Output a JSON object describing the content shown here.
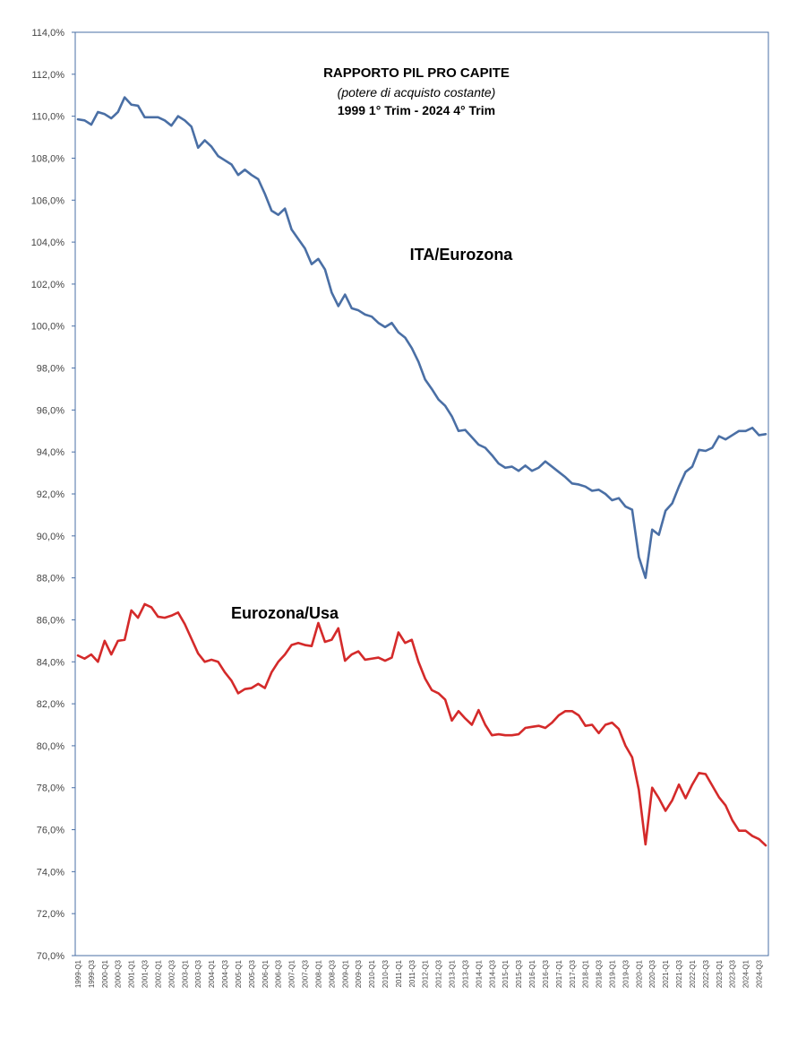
{
  "chart_data": {
    "type": "line",
    "title": "RAPPORTO PIL PRO CAPITE",
    "subtitle": "(potere di acquisto costante)",
    "period": "1999 1° Trim - 2024 4° Trim",
    "xlabel": "",
    "ylabel": "",
    "ylim": [
      70,
      114
    ],
    "ytick_step": 2,
    "ytick_labels": [
      "70,0%",
      "72,0%",
      "74,0%",
      "76,0%",
      "78,0%",
      "80,0%",
      "82,0%",
      "84,0%",
      "86,0%",
      "88,0%",
      "90,0%",
      "92,0%",
      "94,0%",
      "96,0%",
      "98,0%",
      "100,0%",
      "102,0%",
      "104,0%",
      "106,0%",
      "108,0%",
      "110,0%",
      "112,0%",
      "114,0%"
    ],
    "x_tick_labels": [
      "1999-Q1",
      "1999-Q3",
      "2000-Q1",
      "2000-Q3",
      "2001-Q1",
      "2001-Q3",
      "2002-Q1",
      "2002-Q3",
      "2003-Q1",
      "2003-Q3",
      "2004-Q1",
      "2004-Q3",
      "2005-Q1",
      "2005-Q3",
      "2006-Q1",
      "2006-Q3",
      "2007-Q1",
      "2007-Q3",
      "2008-Q1",
      "2008-Q3",
      "2009-Q1",
      "2009-Q3",
      "2010-Q1",
      "2010-Q3",
      "2011-Q1",
      "2011-Q3",
      "2012-Q1",
      "2012-Q3",
      "2013-Q1",
      "2013-Q3",
      "2014-Q1",
      "2014-Q3",
      "2015-Q1",
      "2015-Q3",
      "2016-Q1",
      "2016-Q3",
      "2017-Q1",
      "2017-Q3",
      "2018-Q1",
      "2018-Q3",
      "2019-Q1",
      "2019-Q3",
      "2020-Q1",
      "2020-Q3",
      "2021-Q1",
      "2021-Q3",
      "2022-Q1",
      "2022-Q3",
      "2023-Q1",
      "2023-Q3",
      "2024-Q1",
      "2024-Q3"
    ],
    "grid": false,
    "legend": "none",
    "series": [
      {
        "name": "ITA/Eurozona",
        "color": "#4a6fa5",
        "values": [
          109.85,
          109.8,
          109.6,
          110.2,
          110.1,
          109.9,
          110.2,
          110.9,
          110.55,
          110.5,
          109.95,
          109.95,
          109.95,
          109.8,
          109.55,
          110.0,
          109.8,
          109.5,
          108.5,
          108.85,
          108.55,
          108.1,
          107.9,
          107.7,
          107.2,
          107.45,
          107.2,
          107.0,
          106.3,
          105.5,
          105.3,
          105.6,
          104.6,
          104.15,
          103.7,
          102.95,
          103.2,
          102.7,
          101.6,
          100.95,
          101.5,
          100.85,
          100.75,
          100.55,
          100.45,
          100.15,
          99.95,
          100.15,
          99.7,
          99.45,
          98.95,
          98.3,
          97.45,
          97.0,
          96.5,
          96.2,
          95.7,
          95.0,
          95.05,
          94.7,
          94.35,
          94.2,
          93.85,
          93.45,
          93.25,
          93.3,
          93.1,
          93.35,
          93.1,
          93.25,
          93.55,
          93.3,
          93.05,
          92.8,
          92.5,
          92.45,
          92.35,
          92.15,
          92.2,
          92.0,
          91.7,
          91.8,
          91.4,
          91.25,
          89.0,
          88.0,
          90.3,
          90.05,
          91.2,
          91.55,
          92.35,
          93.05,
          93.3,
          94.1,
          94.05,
          94.2,
          94.75,
          94.6,
          94.8,
          95.0,
          95.0,
          95.15,
          94.8,
          94.85
        ]
      },
      {
        "name": "Eurozona/Usa",
        "color": "#d42a2a",
        "values": [
          84.3,
          84.15,
          84.35,
          84.0,
          85.0,
          84.35,
          85.0,
          85.05,
          86.45,
          86.1,
          86.75,
          86.6,
          86.15,
          86.1,
          86.2,
          86.35,
          85.8,
          85.1,
          84.4,
          84.0,
          84.1,
          84.0,
          83.5,
          83.1,
          82.5,
          82.7,
          82.75,
          82.95,
          82.75,
          83.5,
          84.0,
          84.35,
          84.8,
          84.9,
          84.8,
          84.75,
          85.85,
          84.95,
          85.05,
          85.6,
          84.05,
          84.35,
          84.5,
          84.1,
          84.15,
          84.2,
          84.05,
          84.2,
          85.4,
          84.9,
          85.05,
          84.0,
          83.2,
          82.65,
          82.5,
          82.2,
          81.2,
          81.65,
          81.3,
          81.0,
          81.7,
          81.0,
          80.5,
          80.55,
          80.5,
          80.5,
          80.55,
          80.85,
          80.9,
          80.95,
          80.85,
          81.1,
          81.45,
          81.65,
          81.65,
          81.45,
          80.95,
          81.0,
          80.6,
          81.0,
          81.1,
          80.8,
          80.0,
          79.45,
          77.9,
          75.3,
          78.0,
          77.5,
          76.9,
          77.4,
          78.15,
          77.5,
          78.15,
          78.7,
          78.65,
          78.1,
          77.55,
          77.15,
          76.45,
          75.95,
          75.95,
          75.7,
          75.55,
          75.25
        ]
      }
    ]
  }
}
